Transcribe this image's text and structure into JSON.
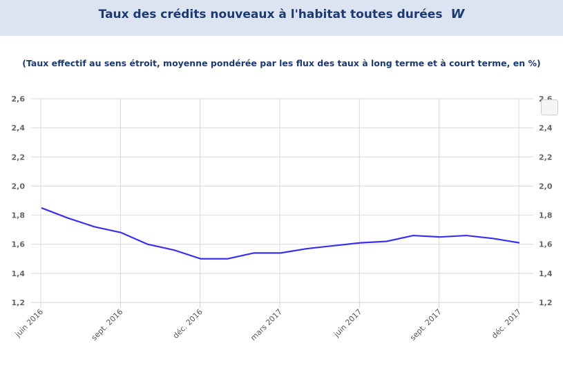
{
  "header": {
    "title": "Taux des crédits nouveaux à l'habitat toutes durées",
    "logo_text": "W"
  },
  "chart_data": {
    "type": "line",
    "title": "Taux des crédits nouveaux à l'habitat toutes durées",
    "subtitle": "(Taux effectif au sens étroit, moyenne pondérée par les flux des taux à long terme et à court terme, en %)",
    "x": [
      "juin 2016",
      "juil. 2016",
      "août 2016",
      "sept. 2016",
      "oct. 2016",
      "nov. 2016",
      "déc. 2016",
      "janv. 2017",
      "févr. 2017",
      "mars 2017",
      "avr. 2017",
      "mai 2017",
      "juin 2017",
      "juil. 2017",
      "août 2017",
      "sept. 2017",
      "oct. 2017",
      "nov. 2017",
      "déc. 2017"
    ],
    "series": [
      {
        "values": [
          1.85,
          1.78,
          1.72,
          1.68,
          1.6,
          1.56,
          1.5,
          1.5,
          1.54,
          1.54,
          1.57,
          1.59,
          1.61,
          1.62,
          1.66,
          1.65,
          1.66,
          1.64,
          1.61
        ],
        "color": "#3a2ef0"
      }
    ],
    "x_tick_labels": [
      "juin 2016",
      "sept. 2016",
      "déc. 2016",
      "mars 2017",
      "juin 2017",
      "sept. 2017",
      "déc. 2017"
    ],
    "y_tick_labels": [
      "1,2",
      "1,4",
      "1,6",
      "1,8",
      "2,0",
      "2,2",
      "2,4",
      "2,6"
    ],
    "ylim": [
      1.2,
      2.6
    ],
    "grid": true,
    "dual_y_axis": true
  }
}
